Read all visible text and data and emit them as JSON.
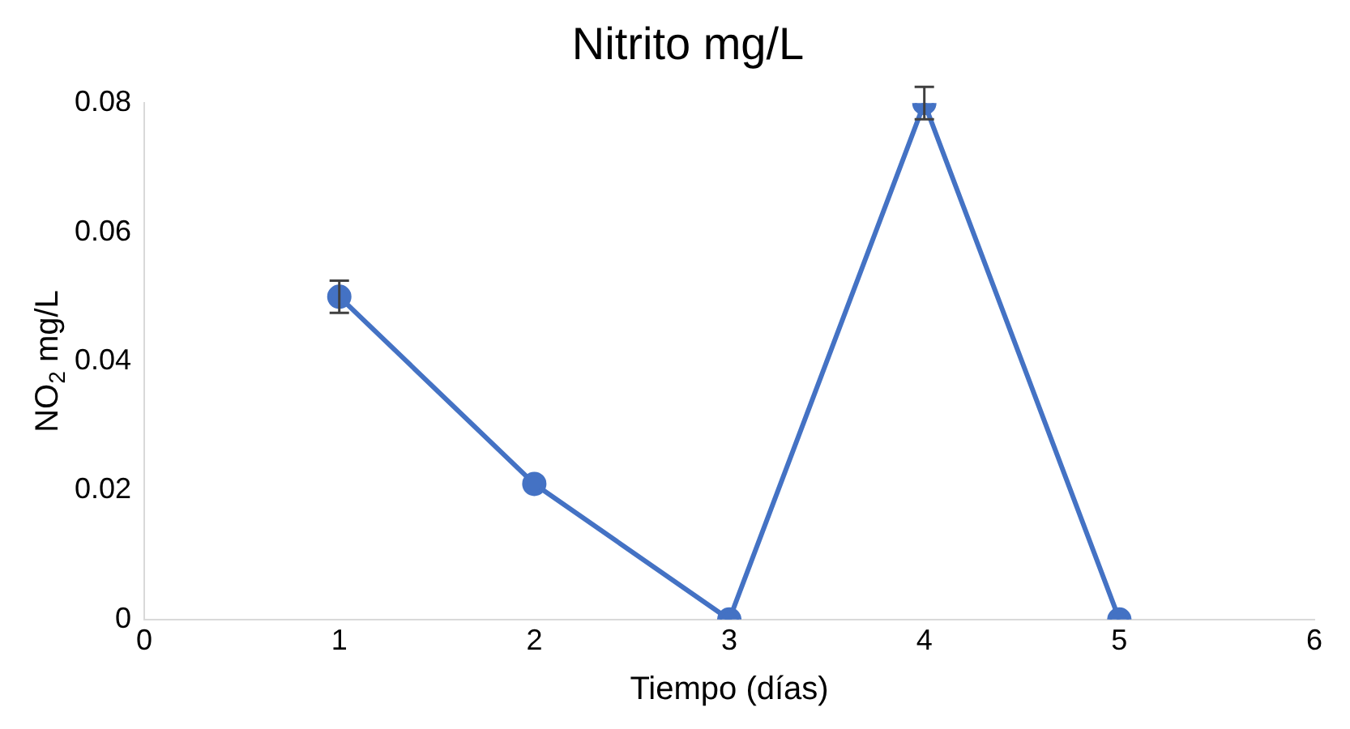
{
  "chart_data": {
    "type": "line",
    "title": "Nitrito mg/L",
    "xlabel": "Tiempo (días)",
    "ylabel": "NO$_{2}$ mg/L",
    "x": [
      1,
      2,
      3,
      4,
      5
    ],
    "series": [
      {
        "color": "#4472c4",
        "values": [
          0.05,
          0.021,
          0,
          0.08,
          0
        ],
        "errors": [
          0.0025,
          null,
          null,
          0.0025,
          null
        ]
      }
    ],
    "xlim": [
      0,
      6
    ],
    "xticks": [
      0,
      1,
      2,
      3,
      4,
      5,
      6
    ],
    "ylim": [
      0,
      0.08
    ],
    "yticks": [
      0,
      0.02,
      0.04,
      0.06,
      0.08
    ],
    "grid": false,
    "legend": false,
    "marker": "circle",
    "line_style": "solid"
  }
}
